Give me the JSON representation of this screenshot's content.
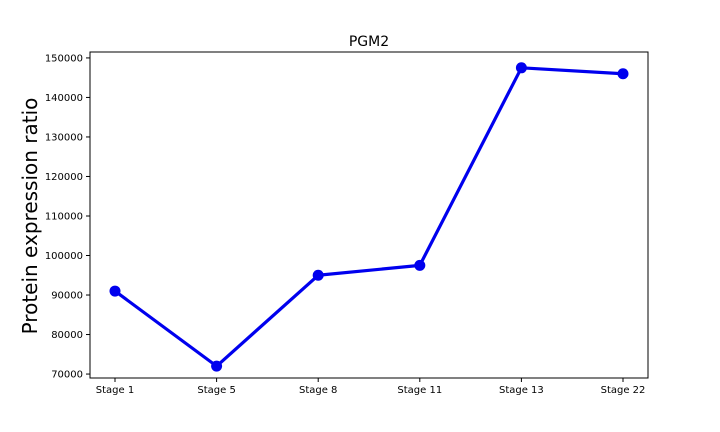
{
  "chart_data": {
    "type": "line",
    "title": "PGM2",
    "xlabel": "",
    "ylabel": "Protein expression ratio",
    "categories": [
      "Stage 1",
      "Stage 5",
      "Stage 8",
      "Stage 11",
      "Stage 13",
      "Stage 22"
    ],
    "series": [
      {
        "values": [
          91000,
          72000,
          95000,
          97500,
          147500,
          146000
        ],
        "color": "#0000ee"
      }
    ],
    "yticks": [
      70000,
      80000,
      90000,
      100000,
      110000,
      120000,
      130000,
      140000,
      150000
    ],
    "ylim": [
      69000,
      151500
    ],
    "grid": false,
    "legend": "none"
  }
}
